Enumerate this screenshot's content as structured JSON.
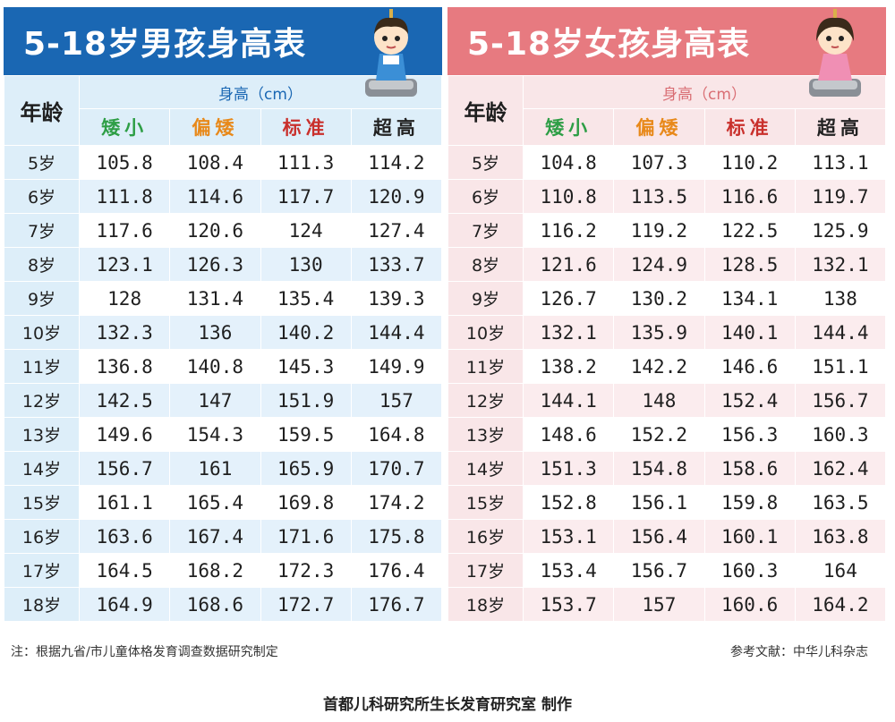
{
  "colors": {
    "boy_title_bg": "#1a67b3",
    "girl_title_bg": "#e77a80",
    "short": "#2e9e46",
    "below": "#e8891a",
    "standard": "#c9302c",
    "tall": "#222222"
  },
  "boy": {
    "title": "5-18岁男孩身高表",
    "age_header": "年龄",
    "height_header": "身高（cm）",
    "categories": [
      "矮小",
      "偏矮",
      "标准",
      "超高"
    ],
    "rows": [
      {
        "age": "5岁",
        "values": [
          "105.8",
          "108.4",
          "111.3",
          "114.2"
        ]
      },
      {
        "age": "6岁",
        "values": [
          "111.8",
          "114.6",
          "117.7",
          "120.9"
        ]
      },
      {
        "age": "7岁",
        "values": [
          "117.6",
          "120.6",
          "124",
          "127.4"
        ]
      },
      {
        "age": "8岁",
        "values": [
          "123.1",
          "126.3",
          "130",
          "133.7"
        ]
      },
      {
        "age": "9岁",
        "values": [
          "128",
          "131.4",
          "135.4",
          "139.3"
        ]
      },
      {
        "age": "10岁",
        "values": [
          "132.3",
          "136",
          "140.2",
          "144.4"
        ]
      },
      {
        "age": "11岁",
        "values": [
          "136.8",
          "140.8",
          "145.3",
          "149.9"
        ]
      },
      {
        "age": "12岁",
        "values": [
          "142.5",
          "147",
          "151.9",
          "157"
        ]
      },
      {
        "age": "13岁",
        "values": [
          "149.6",
          "154.3",
          "159.5",
          "164.8"
        ]
      },
      {
        "age": "14岁",
        "values": [
          "156.7",
          "161",
          "165.9",
          "170.7"
        ]
      },
      {
        "age": "15岁",
        "values": [
          "161.1",
          "165.4",
          "169.8",
          "174.2"
        ]
      },
      {
        "age": "16岁",
        "values": [
          "163.6",
          "167.4",
          "171.6",
          "175.8"
        ]
      },
      {
        "age": "17岁",
        "values": [
          "164.5",
          "168.2",
          "172.3",
          "176.4"
        ]
      },
      {
        "age": "18岁",
        "values": [
          "164.9",
          "168.6",
          "172.7",
          "176.7"
        ]
      }
    ]
  },
  "girl": {
    "title": "5-18岁女孩身高表",
    "age_header": "年龄",
    "height_header": "身高（cm）",
    "categories": [
      "矮小",
      "偏矮",
      "标准",
      "超高"
    ],
    "rows": [
      {
        "age": "5岁",
        "values": [
          "104.8",
          "107.3",
          "110.2",
          "113.1"
        ]
      },
      {
        "age": "6岁",
        "values": [
          "110.8",
          "113.5",
          "116.6",
          "119.7"
        ]
      },
      {
        "age": "7岁",
        "values": [
          "116.2",
          "119.2",
          "122.5",
          "125.9"
        ]
      },
      {
        "age": "8岁",
        "values": [
          "121.6",
          "124.9",
          "128.5",
          "132.1"
        ]
      },
      {
        "age": "9岁",
        "values": [
          "126.7",
          "130.2",
          "134.1",
          "138"
        ]
      },
      {
        "age": "10岁",
        "values": [
          "132.1",
          "135.9",
          "140.1",
          "144.4"
        ]
      },
      {
        "age": "11岁",
        "values": [
          "138.2",
          "142.2",
          "146.6",
          "151.1"
        ]
      },
      {
        "age": "12岁",
        "values": [
          "144.1",
          "148",
          "152.4",
          "156.7"
        ]
      },
      {
        "age": "13岁",
        "values": [
          "148.6",
          "152.2",
          "156.3",
          "160.3"
        ]
      },
      {
        "age": "14岁",
        "values": [
          "151.3",
          "154.8",
          "158.6",
          "162.4"
        ]
      },
      {
        "age": "15岁",
        "values": [
          "152.8",
          "156.1",
          "159.8",
          "163.5"
        ]
      },
      {
        "age": "16岁",
        "values": [
          "153.1",
          "156.4",
          "160.1",
          "163.8"
        ]
      },
      {
        "age": "17岁",
        "values": [
          "153.4",
          "156.7",
          "160.3",
          "164"
        ]
      },
      {
        "age": "18岁",
        "values": [
          "153.7",
          "157",
          "160.6",
          "164.2"
        ]
      }
    ]
  },
  "note_left": "注：根据九省/市儿童体格发育调查数据研究制定",
  "note_right": "参考文献：中华儿科杂志",
  "footer": "首都儿科研究所生长发育研究室 制作"
}
